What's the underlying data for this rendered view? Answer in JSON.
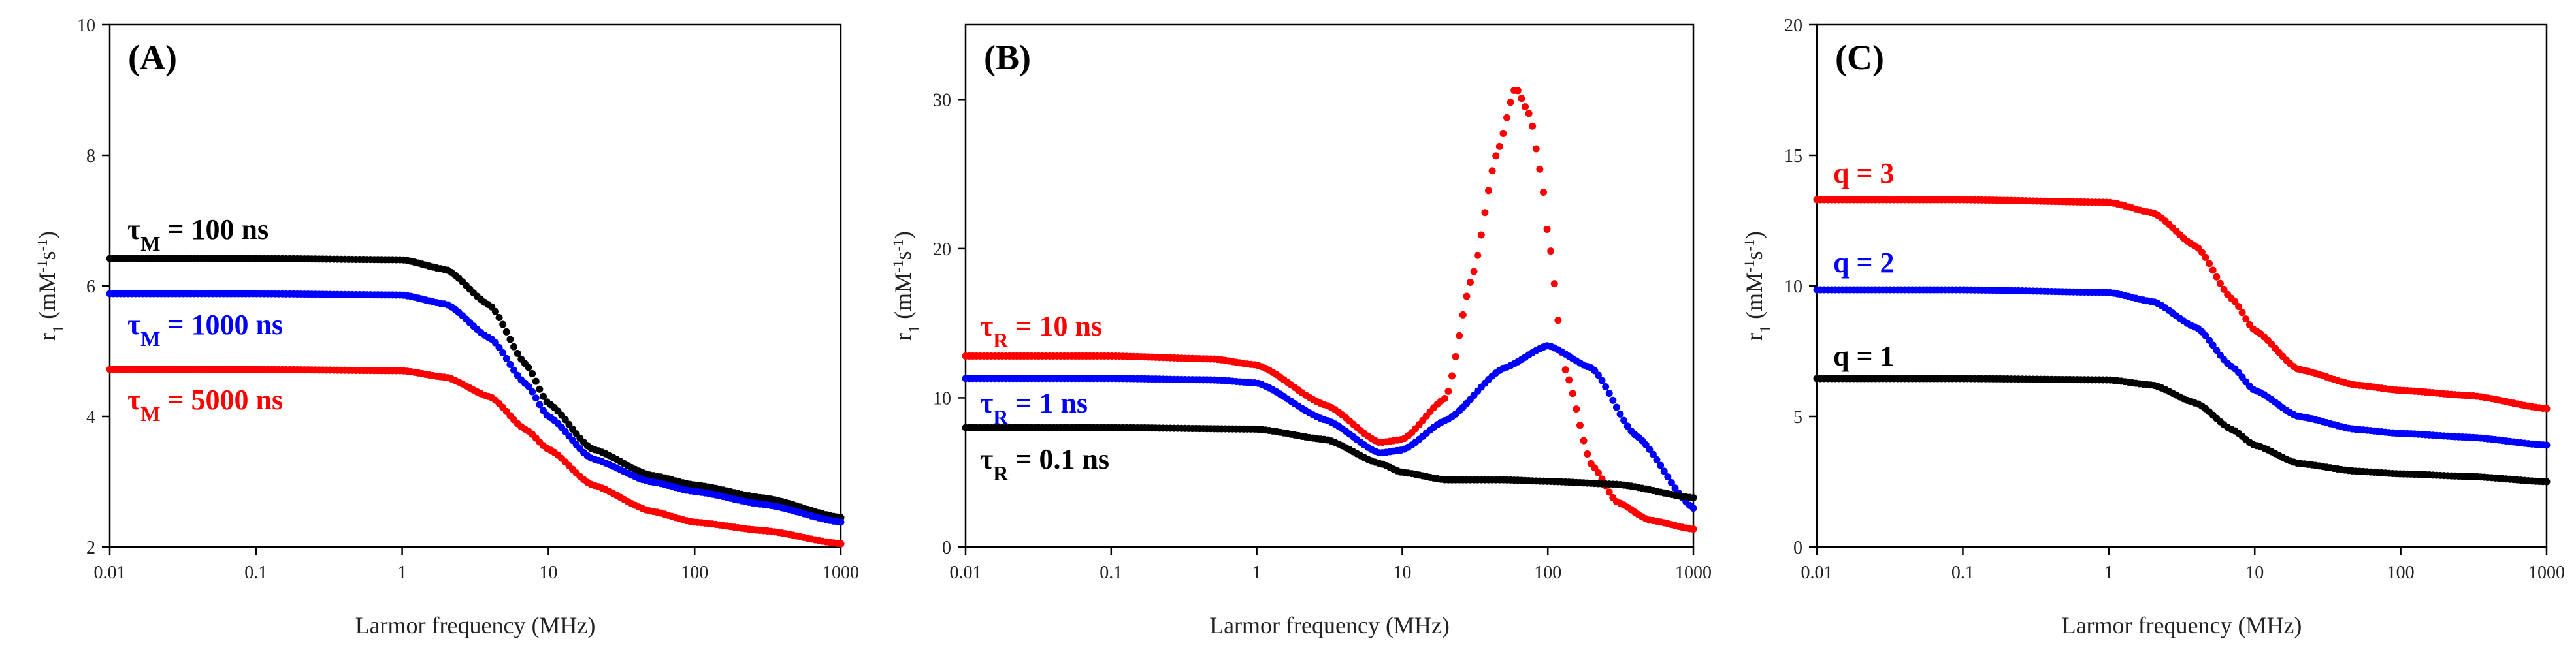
{
  "chart_data": [
    {
      "type": "scatter",
      "panel_label": "(A)",
      "xlabel": "Larmor frequency (MHz)",
      "ylabel": "r1 (mM-1s-1)",
      "xscale": "log",
      "xlim": [
        0.01,
        1000
      ],
      "ylim": [
        2,
        10
      ],
      "xticks": [
        0.01,
        0.1,
        1,
        10,
        100,
        1000
      ],
      "xtick_labels": [
        "0.01",
        "0.1",
        "1",
        "10",
        "100",
        "1000"
      ],
      "yticks": [
        2,
        4,
        6,
        8,
        10
      ],
      "grid": false,
      "series": [
        {
          "name": "τM = 100 ns",
          "label_main": "τ",
          "label_sub": "M",
          "label_rest": " = 100 ns",
          "color": "#000000",
          "x": [
            0.01,
            0.1,
            1,
            2,
            4,
            7,
            10,
            20,
            50,
            100,
            300,
            1000
          ],
          "y": [
            6.42,
            6.42,
            6.4,
            6.25,
            5.7,
            4.8,
            4.2,
            3.5,
            3.1,
            2.95,
            2.75,
            2.45
          ]
        },
        {
          "name": "τM = 1000 ns",
          "label_main": "τ",
          "label_sub": "M",
          "label_rest": " = 1000 ns",
          "color": "#0000ff",
          "x": [
            0.01,
            0.1,
            1,
            2,
            4,
            7,
            10,
            20,
            50,
            100,
            300,
            1000
          ],
          "y": [
            5.88,
            5.88,
            5.86,
            5.72,
            5.2,
            4.5,
            4.0,
            3.35,
            3.0,
            2.85,
            2.65,
            2.38
          ]
        },
        {
          "name": "τM = 5000 ns",
          "label_main": "τ",
          "label_sub": "M",
          "label_rest": " = 5000 ns",
          "color": "#ff0000",
          "x": [
            0.01,
            0.1,
            1,
            2,
            4,
            7,
            10,
            20,
            50,
            100,
            300,
            1000
          ],
          "y": [
            4.72,
            4.72,
            4.7,
            4.6,
            4.3,
            3.8,
            3.5,
            2.95,
            2.55,
            2.38,
            2.25,
            2.05
          ]
        }
      ]
    },
    {
      "type": "scatter",
      "panel_label": "(B)",
      "xlabel": "Larmor frequency (MHz)",
      "ylabel": "r1 (mM-1s-1)",
      "xscale": "log",
      "xlim": [
        0.01,
        1000
      ],
      "ylim": [
        0,
        35
      ],
      "xticks": [
        0.01,
        0.1,
        1,
        10,
        100,
        1000
      ],
      "xtick_labels": [
        "0.01",
        "0.1",
        "1",
        "10",
        "100",
        "1000"
      ],
      "yticks": [
        0,
        10,
        20,
        30
      ],
      "grid": false,
      "series": [
        {
          "name": "τR = 10 ns",
          "label_main": "τ",
          "label_sub": "R",
          "label_rest": " = 10 ns",
          "color": "#ff0000",
          "x": [
            0.01,
            0.1,
            0.5,
            1,
            3,
            7,
            10,
            20,
            30,
            45,
            60,
            75,
            90,
            100,
            130,
            200,
            300,
            500,
            1000
          ],
          "y": [
            12.8,
            12.8,
            12.6,
            12.2,
            9.5,
            7.0,
            7.2,
            10.0,
            18.0,
            26.5,
            30.8,
            29.0,
            25.0,
            21.0,
            12.0,
            5.5,
            3.0,
            1.8,
            1.2
          ]
        },
        {
          "name": "τR = 1 ns",
          "label_main": "τ",
          "label_sub": "R",
          "label_rest": " = 1 ns",
          "color": "#0000ff",
          "x": [
            0.01,
            0.1,
            0.5,
            1,
            3,
            7,
            10,
            20,
            50,
            100,
            200,
            400,
            1000
          ],
          "y": [
            11.3,
            11.3,
            11.2,
            11.0,
            8.5,
            6.3,
            6.5,
            8.5,
            12.0,
            13.5,
            12.0,
            7.5,
            2.6
          ]
        },
        {
          "name": "τR = 0.1 ns",
          "label_main": "τ",
          "label_sub": "R",
          "label_rest": " = 0.1 ns",
          "color": "#000000",
          "x": [
            0.01,
            0.1,
            1,
            3,
            7,
            10,
            20,
            50,
            100,
            300,
            1000
          ],
          "y": [
            8.0,
            8.0,
            7.9,
            7.2,
            5.6,
            5.0,
            4.5,
            4.5,
            4.4,
            4.2,
            3.3
          ]
        }
      ]
    },
    {
      "type": "scatter",
      "panel_label": "(C)",
      "xlabel": "Larmor frequency (MHz)",
      "ylabel": "r1 (mM-1s-1)",
      "xscale": "log",
      "xlim": [
        0.01,
        1000
      ],
      "ylim": [
        0,
        20
      ],
      "xticks": [
        0.01,
        0.1,
        1,
        10,
        100,
        1000
      ],
      "xtick_labels": [
        "0.01",
        "0.1",
        "1",
        "10",
        "100",
        "1000"
      ],
      "yticks": [
        0,
        5,
        10,
        15,
        20
      ],
      "grid": false,
      "series": [
        {
          "name": "q = 3",
          "label_main": "q = 3",
          "label_sub": "",
          "label_rest": "",
          "color": "#ff0000",
          "x": [
            0.01,
            0.1,
            1,
            2,
            4,
            7,
            10,
            20,
            50,
            100,
            300,
            1000
          ],
          "y": [
            13.3,
            13.3,
            13.2,
            12.8,
            11.5,
            9.5,
            8.3,
            6.8,
            6.2,
            6.0,
            5.8,
            5.3
          ]
        },
        {
          "name": "q = 2",
          "label_main": "q = 2",
          "label_sub": "",
          "label_rest": "",
          "color": "#0000ff",
          "x": [
            0.01,
            0.1,
            1,
            2,
            4,
            7,
            10,
            20,
            50,
            100,
            300,
            1000
          ],
          "y": [
            9.85,
            9.85,
            9.75,
            9.4,
            8.4,
            6.9,
            6.0,
            5.0,
            4.5,
            4.35,
            4.2,
            3.9
          ]
        },
        {
          "name": "q = 1",
          "label_main": "q = 1",
          "label_sub": "",
          "label_rest": "",
          "color": "#000000",
          "x": [
            0.01,
            0.1,
            1,
            2,
            4,
            7,
            10,
            20,
            50,
            100,
            300,
            1000
          ],
          "y": [
            6.45,
            6.45,
            6.4,
            6.2,
            5.5,
            4.5,
            3.9,
            3.2,
            2.9,
            2.8,
            2.7,
            2.5
          ]
        }
      ]
    }
  ]
}
